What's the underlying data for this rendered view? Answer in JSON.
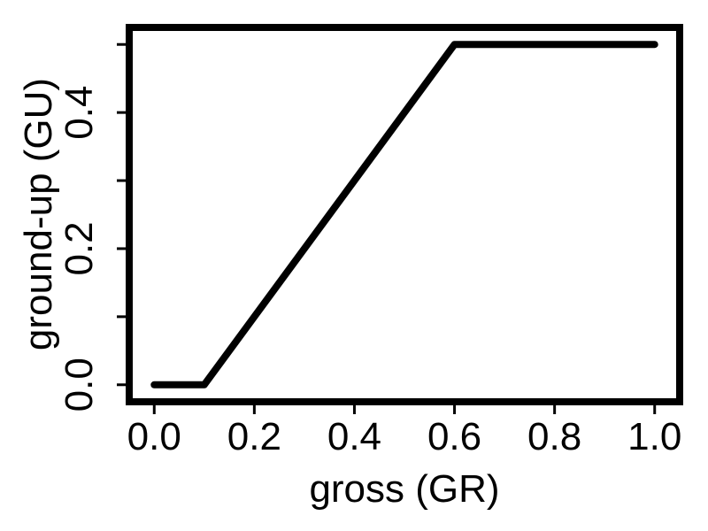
{
  "chart_data": {
    "type": "line",
    "title": "",
    "xlabel": "gross (GR)",
    "ylabel": "ground-up (GU)",
    "xlim": [
      -0.05,
      1.05
    ],
    "ylim": [
      -0.025,
      0.525
    ],
    "x_ticks": [
      0.0,
      0.2,
      0.4,
      0.6,
      0.8,
      1.0
    ],
    "x_tick_labels": [
      "0.0",
      "0.2",
      "0.4",
      "0.6",
      "0.8",
      "1.0"
    ],
    "y_ticks": [
      0.0,
      0.1,
      0.2,
      0.3,
      0.4,
      0.5
    ],
    "y_tick_labels": [
      "0.0",
      "",
      "0.2",
      "",
      "0.4",
      ""
    ],
    "grid": false,
    "legend": "none",
    "series": [
      {
        "x": [
          0.0,
          0.1,
          0.6,
          1.0
        ],
        "y": [
          0.0,
          0.0,
          0.5,
          0.5
        ],
        "color": "#000000"
      }
    ]
  }
}
